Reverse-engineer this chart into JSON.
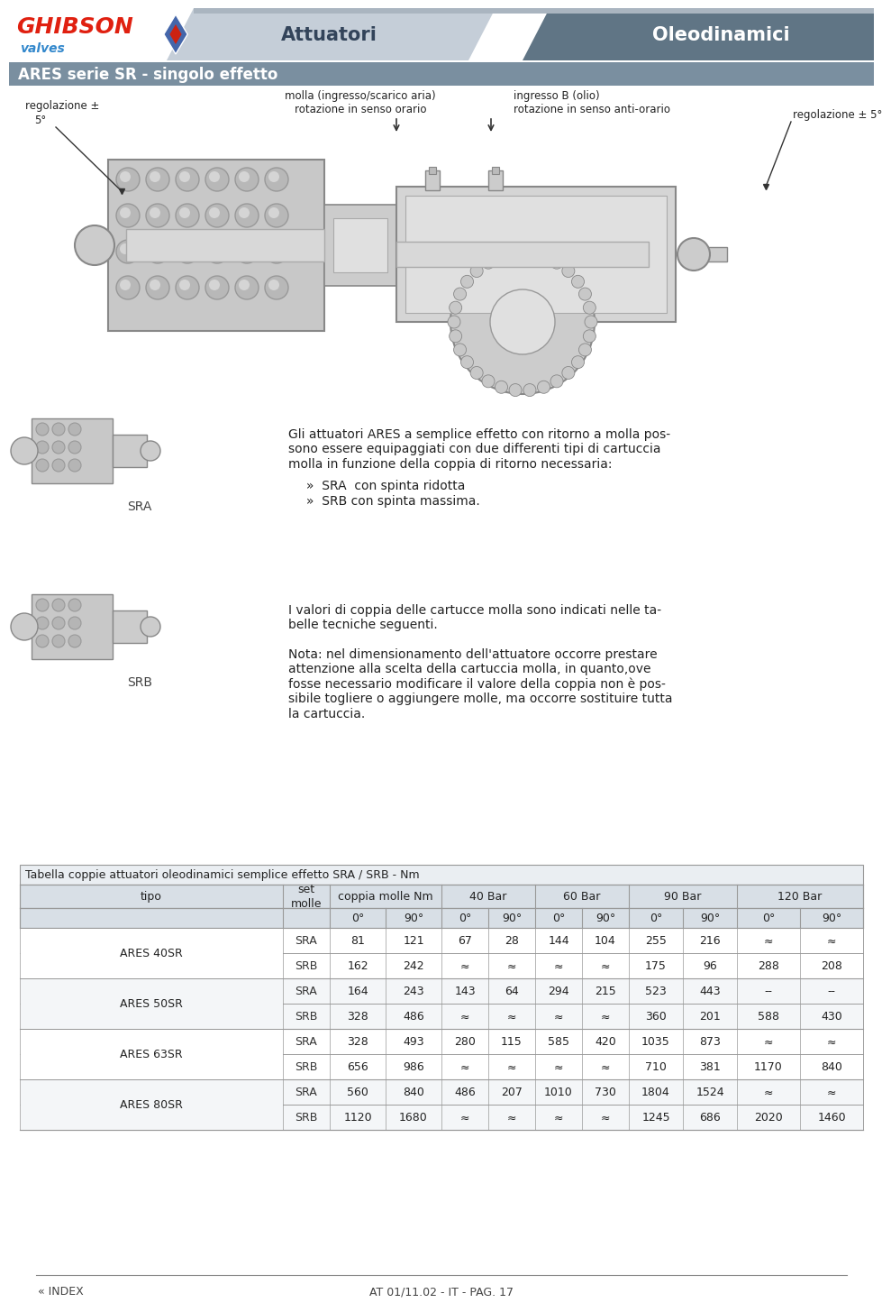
{
  "page_bg": "#ffffff",
  "header_text1": "Attuatori",
  "header_text2": "Oleodinamici",
  "subtitle_text": "ARES serie SR - singolo effetto",
  "anno_label1": "molla (ingresso/scarico aria)\nrotazione in senso orario",
  "anno_label2": "ingresso B (olio)\nrotazione in senso anti-orario",
  "anno_left_line1": "regolazione ±",
  "anno_left_line2": "5°",
  "anno_right": "regolazione ± 5°",
  "sra_label": "SRA",
  "srb_label": "SRB",
  "text_block1_lines": [
    "Gli attuatori ARES a semplice effetto con ritorno a molla pos-",
    "sono essere equipaggiati con due differenti tipi di cartuccia",
    "molla in funzione della coppia di ritorno necessaria:"
  ],
  "text_block1_bullets": [
    "»  SRA  con spinta ridotta",
    "»  SRB con spinta massima."
  ],
  "text_block2_lines": [
    "I valori di coppia delle cartucce molla sono indicati nelle ta-",
    "belle tecniche seguenti."
  ],
  "text_block3_lines": [
    "Nota: nel dimensionamento dell'attuatore occorre prestare",
    "attenzione alla scelta della cartuccia molla, in quanto,ove",
    "fosse necessario modificare il valore della coppia non è pos-",
    "sibile togliere o aggiungere molle, ma occorre sostituire tutta",
    "la cartuccia."
  ],
  "table_title": "Tabella coppie attuatori oleodinamici semplice effetto SRA / SRB - Nm",
  "rows": [
    [
      "ARES 40SR",
      "SRA",
      "81",
      "121",
      "67",
      "28",
      "144",
      "104",
      "255",
      "216",
      "≈",
      "≈"
    ],
    [
      "ARES 40SR",
      "SRB",
      "162",
      "242",
      "≈",
      "≈",
      "≈",
      "≈",
      "175",
      "96",
      "288",
      "208"
    ],
    [
      "ARES 50SR",
      "SRA",
      "164",
      "243",
      "143",
      "64",
      "294",
      "215",
      "523",
      "443",
      "--",
      "--"
    ],
    [
      "ARES 50SR",
      "SRB",
      "328",
      "486",
      "≈",
      "≈",
      "≈",
      "≈",
      "360",
      "201",
      "588",
      "430"
    ],
    [
      "ARES 63SR",
      "SRA",
      "328",
      "493",
      "280",
      "115",
      "585",
      "420",
      "1035",
      "873",
      "≈",
      "≈"
    ],
    [
      "ARES 63SR",
      "SRB",
      "656",
      "986",
      "≈",
      "≈",
      "≈",
      "≈",
      "710",
      "381",
      "1170",
      "840"
    ],
    [
      "ARES 80SR",
      "SRA",
      "560",
      "840",
      "486",
      "207",
      "1010",
      "730",
      "1804",
      "1524",
      "≈",
      "≈"
    ],
    [
      "ARES 80SR",
      "SRB",
      "1120",
      "1680",
      "≈",
      "≈",
      "≈",
      "≈",
      "1245",
      "686",
      "2020",
      "1460"
    ]
  ],
  "footer_left": "« INDEX",
  "footer_center": "AT 01/11.02 - IT - PAG. 17",
  "header_center_bg": "#c8d0d8",
  "header_right_bg": "#607585",
  "subtitle_bg": "#7a8fa0",
  "table_header_bg": "#d8dfe6",
  "table_border": "#999999",
  "table_title_bg": "#eaeef2"
}
